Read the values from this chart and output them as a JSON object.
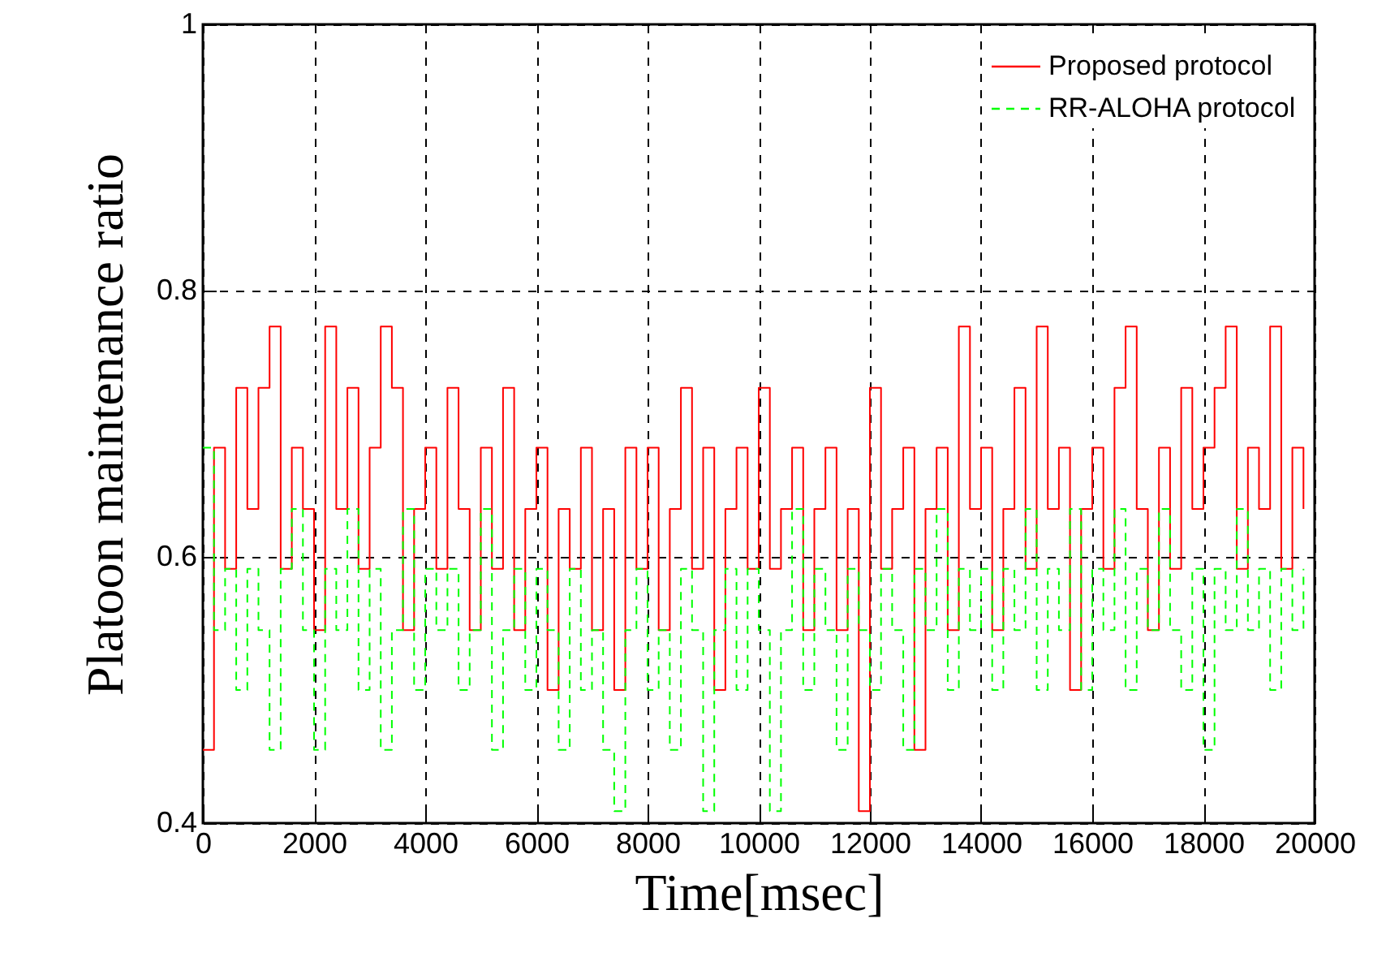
{
  "chart_data": {
    "type": "step",
    "xlabel": "Time[msec]",
    "ylabel": "Platoon maintenance ratio",
    "x": [
      0,
      200,
      400,
      600,
      800,
      1000,
      1200,
      1400,
      1600,
      1800,
      2000,
      2200,
      2400,
      2600,
      2800,
      3000,
      3200,
      3400,
      3600,
      3800,
      4000,
      4200,
      4400,
      4600,
      4800,
      5000,
      5200,
      5400,
      5600,
      5800,
      6000,
      6200,
      6400,
      6600,
      6800,
      7000,
      7200,
      7400,
      7600,
      7800,
      8000,
      8200,
      8400,
      8600,
      8800,
      9000,
      9200,
      9400,
      9600,
      9800,
      10000,
      10200,
      10400,
      10600,
      10800,
      11000,
      11200,
      11400,
      11600,
      11800,
      12000,
      12200,
      12400,
      12600,
      12800,
      13000,
      13200,
      13400,
      13600,
      13800,
      14000,
      14200,
      14400,
      14600,
      14800,
      15000,
      15200,
      15400,
      15600,
      15800,
      16000,
      16200,
      16400,
      16600,
      16800,
      17000,
      17200,
      17400,
      17600,
      17800,
      18000,
      18200,
      18400,
      18600,
      18800,
      19000,
      19200,
      19400,
      19600,
      19800
    ],
    "series": [
      {
        "name": "Proposed protocol",
        "color": "#ff0000",
        "line_style": "solid",
        "values": [
          0.455,
          0.682,
          0.591,
          0.727,
          0.636,
          0.727,
          0.773,
          0.591,
          0.682,
          0.636,
          0.545,
          0.773,
          0.636,
          0.727,
          0.591,
          0.682,
          0.773,
          0.727,
          0.545,
          0.636,
          0.682,
          0.591,
          0.727,
          0.636,
          0.545,
          0.682,
          0.591,
          0.727,
          0.545,
          0.636,
          0.682,
          0.5,
          0.636,
          0.591,
          0.682,
          0.545,
          0.636,
          0.5,
          0.682,
          0.591,
          0.682,
          0.545,
          0.636,
          0.727,
          0.591,
          0.682,
          0.5,
          0.636,
          0.682,
          0.591,
          0.727,
          0.591,
          0.636,
          0.682,
          0.545,
          0.636,
          0.682,
          0.545,
          0.636,
          0.409,
          0.727,
          0.591,
          0.636,
          0.682,
          0.455,
          0.636,
          0.682,
          0.545,
          0.773,
          0.636,
          0.682,
          0.545,
          0.636,
          0.727,
          0.591,
          0.773,
          0.636,
          0.682,
          0.5,
          0.636,
          0.682,
          0.591,
          0.727,
          0.773,
          0.636,
          0.545,
          0.682,
          0.591,
          0.727,
          0.636,
          0.682,
          0.727,
          0.773,
          0.591,
          0.682,
          0.636,
          0.773,
          0.591,
          0.682,
          0.636
        ]
      },
      {
        "name": "RR-ALOHA protocol",
        "color": "#00ff00",
        "line_style": "dashed",
        "values": [
          0.682,
          0.545,
          0.591,
          0.5,
          0.591,
          0.545,
          0.455,
          0.591,
          0.636,
          0.545,
          0.455,
          0.591,
          0.545,
          0.636,
          0.5,
          0.591,
          0.455,
          0.545,
          0.636,
          0.5,
          0.591,
          0.545,
          0.591,
          0.5,
          0.545,
          0.636,
          0.455,
          0.545,
          0.591,
          0.5,
          0.591,
          0.545,
          0.455,
          0.591,
          0.5,
          0.545,
          0.455,
          0.409,
          0.545,
          0.591,
          0.5,
          0.545,
          0.455,
          0.591,
          0.545,
          0.409,
          0.545,
          0.591,
          0.5,
          0.591,
          0.545,
          0.409,
          0.545,
          0.636,
          0.5,
          0.591,
          0.545,
          0.455,
          0.591,
          0.545,
          0.5,
          0.591,
          0.545,
          0.455,
          0.591,
          0.545,
          0.636,
          0.5,
          0.591,
          0.545,
          0.591,
          0.5,
          0.591,
          0.545,
          0.636,
          0.5,
          0.591,
          0.545,
          0.636,
          0.5,
          0.591,
          0.545,
          0.636,
          0.5,
          0.591,
          0.545,
          0.636,
          0.545,
          0.5,
          0.591,
          0.455,
          0.591,
          0.545,
          0.636,
          0.545,
          0.591,
          0.5,
          0.591,
          0.545,
          0.591
        ]
      }
    ],
    "xlim": [
      0,
      20000
    ],
    "xticks": [
      0,
      2000,
      4000,
      6000,
      8000,
      10000,
      12000,
      14000,
      16000,
      18000,
      20000
    ],
    "ylim": [
      0.4,
      1
    ],
    "yticks": [
      0.4,
      0.6,
      0.8,
      1
    ],
    "grid": true,
    "legend": "top right",
    "marker": "none"
  }
}
